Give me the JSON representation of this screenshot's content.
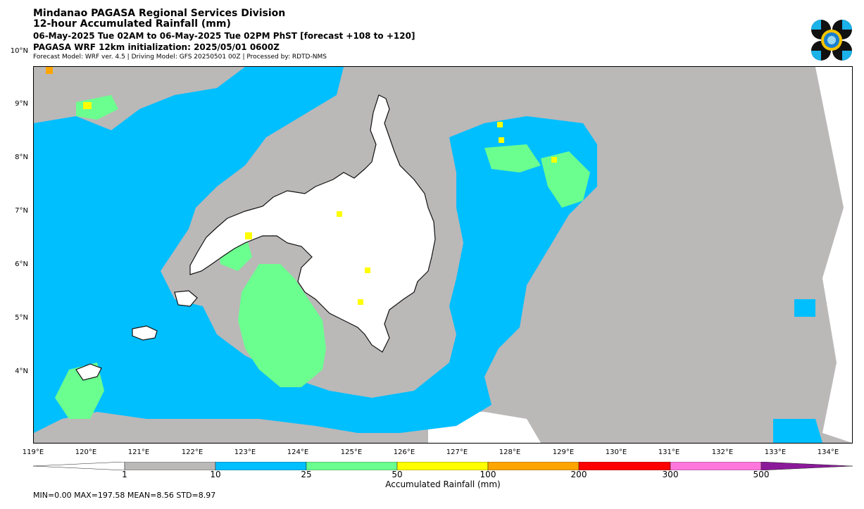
{
  "header": {
    "org": "Mindanao PAGASA Regional Services Division",
    "product": "12-hour Accumulated Rainfall (mm)",
    "period": "06-May-2025 Tue 02AM to 06-May-2025 Tue 02PM PhST [forecast +108 to +120]",
    "init": "PAGASA WRF 12km initialization: 2025/05/01 0600Z",
    "model": "Forecast Model: WRF ver. 4.5 | Driving Model: GFS 20250501 00Z | Processed by: RDTD-NMS"
  },
  "map": {
    "lon_range": [
      119,
      134.5
    ],
    "lat_range": [
      3.9,
      10.95
    ],
    "lat_ticks": [
      "10°N",
      "9°N",
      "8°N",
      "7°N",
      "6°N",
      "5°N",
      "4°N"
    ],
    "lat_values": [
      10,
      9,
      8,
      7,
      6,
      5,
      4
    ],
    "lon_ticks": [
      "119°E",
      "120°E",
      "121°E",
      "122°E",
      "123°E",
      "124°E",
      "125°E",
      "126°E",
      "127°E",
      "128°E",
      "129°E",
      "130°E",
      "131°E",
      "132°E",
      "133°E",
      "134°E"
    ],
    "lon_values": [
      119,
      120,
      121,
      122,
      123,
      124,
      125,
      126,
      127,
      128,
      129,
      130,
      131,
      132,
      133,
      134
    ]
  },
  "colorbar": {
    "levels": [
      "1",
      "10",
      "25",
      "50",
      "100",
      "200",
      "300",
      "500"
    ],
    "colors": [
      "#ffffff",
      "#bbb8b8",
      "#00bfff",
      "#6bff8f",
      "#ffff00",
      "#ffa500",
      "#ff0000",
      "#ff77dd",
      "#8b1a9a"
    ],
    "label": "Accumulated Rainfall (mm)"
  },
  "stats": "MIN=0.00   MAX=197.58   MEAN=8.56   STD=8.97"
}
